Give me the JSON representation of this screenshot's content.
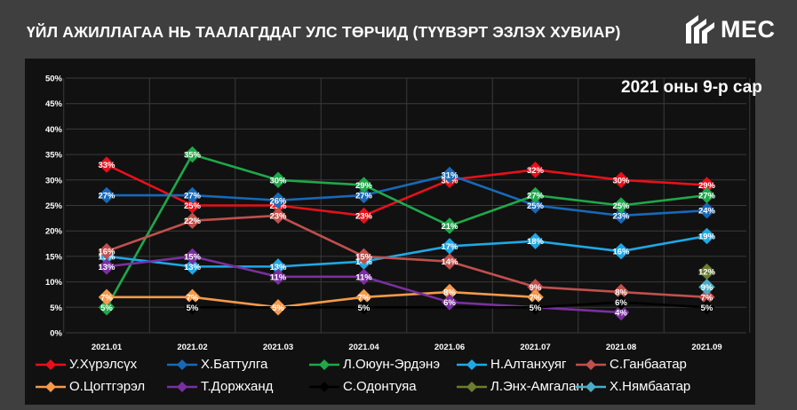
{
  "title": "ҮЙЛ АЖИЛЛАГАА НЬ ТААЛАГДДАГ УЛС ТӨРЧИД (ТҮҮВЭРТ ЭЗЛЭХ ХУВИАР)",
  "subtitle": "2021 оны 9-р сар",
  "logo": {
    "text": "MEC",
    "icon": "mec-logo-icon"
  },
  "chart_data": {
    "type": "line",
    "title": "ҮЙЛ АЖИЛЛАГАА НЬ ТААЛАГДДАГ УЛС ТӨРЧИД (ТҮҮВЭРТ ЭЗЛЭХ ХУВИАР)",
    "xlabel": "",
    "ylabel": "",
    "categories": [
      "2021.01",
      "2021.02",
      "2021.03",
      "2021.04",
      "2021.06",
      "2021.07",
      "2021.08",
      "2021.09"
    ],
    "ylim": [
      0,
      50
    ],
    "yticks": [
      "0%",
      "5%",
      "10%",
      "15%",
      "20%",
      "25%",
      "30%",
      "35%",
      "40%",
      "45%",
      "50%"
    ],
    "grid": true,
    "legend_position": "bottom",
    "series": [
      {
        "name": "У.Хүрэлсүх",
        "color": "#e8101a",
        "values": [
          33,
          25,
          25,
          23,
          30,
          32,
          30,
          29
        ]
      },
      {
        "name": "Х.Баттулга",
        "color": "#1769b8",
        "values": [
          27,
          27,
          26,
          27,
          31,
          25,
          23,
          24
        ]
      },
      {
        "name": "Л.Оюун-Эрдэнэ",
        "color": "#1fa84a",
        "values": [
          5,
          35,
          30,
          29,
          21,
          27,
          25,
          27
        ]
      },
      {
        "name": "Н.Алтанхуяг",
        "color": "#1ea8e6",
        "values": [
          15,
          13,
          13,
          14,
          17,
          18,
          16,
          19
        ]
      },
      {
        "name": "С.Ганбаатар",
        "color": "#c0504d",
        "values": [
          16,
          22,
          23,
          15,
          14,
          9,
          8,
          7
        ]
      },
      {
        "name": "О.Цогтгэрэл",
        "color": "#f59a4a",
        "values": [
          7,
          7,
          5,
          7,
          8,
          7,
          null,
          null
        ]
      },
      {
        "name": "Т.Доржханд",
        "color": "#7a2fa0",
        "values": [
          13,
          15,
          11,
          11,
          6,
          null,
          4,
          null
        ]
      },
      {
        "name": "С.Одонтуяа",
        "color": "#000000",
        "values": [
          null,
          5,
          null,
          5,
          null,
          5,
          6,
          5
        ]
      },
      {
        "name": "Л.Энх-Амгалан",
        "color": "#6b7d2e",
        "values": [
          null,
          null,
          null,
          null,
          null,
          null,
          null,
          12
        ]
      },
      {
        "name": "Х.Нямбаатар",
        "color": "#4aacc6",
        "values": [
          null,
          null,
          null,
          null,
          null,
          null,
          null,
          9
        ]
      }
    ]
  }
}
